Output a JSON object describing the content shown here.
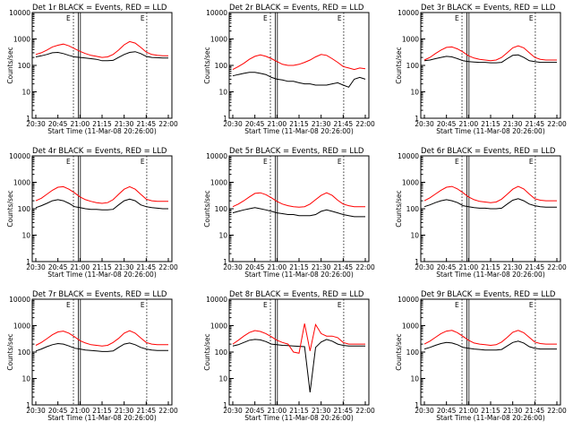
{
  "figure": {
    "xlabel": "Start Time (11-Mar-08 20:26:00)",
    "ylabel": "Counts/sec",
    "x_tick_labels": [
      "20:30",
      "20:45",
      "21:00",
      "21:15",
      "21:30",
      "21:45",
      "22:00"
    ],
    "y_tick_labels": [
      "1",
      "10",
      "100",
      "1000",
      "10000"
    ],
    "marker_label": "E",
    "colors": {
      "events": "#000000",
      "lld": "#ff0000"
    }
  },
  "chart_data": [
    {
      "type": "line",
      "title": "Det 1r BLACK = Events, RED = LLD",
      "scale": "log",
      "ylim": [
        1,
        10000
      ],
      "series": [
        {
          "color": "#000000",
          "values": [
            210,
            230,
            260,
            300,
            310,
            280,
            240,
            210,
            200,
            190,
            180,
            170,
            150,
            150,
            155,
            200,
            260,
            310,
            330,
            280,
            220,
            200,
            195,
            190,
            190
          ]
        },
        {
          "color": "#ff0000",
          "values": [
            260,
            300,
            380,
            500,
            580,
            640,
            550,
            430,
            340,
            280,
            240,
            220,
            200,
            210,
            260,
            380,
            600,
            800,
            700,
            480,
            320,
            260,
            240,
            230,
            230
          ]
        }
      ]
    },
    {
      "type": "line",
      "title": "Det 2r BLACK = Events, RED = LLD",
      "scale": "log",
      "ylim": [
        1,
        10000
      ],
      "series": [
        {
          "color": "#000000",
          "values": [
            40,
            45,
            50,
            55,
            55,
            50,
            45,
            35,
            30,
            28,
            25,
            25,
            22,
            20,
            20,
            18,
            18,
            18,
            20,
            22,
            18,
            15,
            30,
            35,
            30
          ]
        },
        {
          "color": "#ff0000",
          "values": [
            70,
            90,
            120,
            170,
            220,
            250,
            220,
            180,
            140,
            110,
            100,
            100,
            110,
            130,
            160,
            210,
            260,
            240,
            180,
            130,
            90,
            80,
            70,
            80,
            75
          ]
        }
      ]
    },
    {
      "type": "line",
      "title": "Det 3r BLACK = Events, RED = LLD",
      "scale": "log",
      "ylim": [
        1,
        10000
      ],
      "series": [
        {
          "color": "#000000",
          "values": [
            150,
            160,
            180,
            200,
            220,
            210,
            180,
            150,
            140,
            135,
            130,
            130,
            125,
            125,
            130,
            180,
            240,
            250,
            200,
            150,
            140,
            130,
            130,
            130,
            130
          ]
        },
        {
          "color": "#ff0000",
          "values": [
            160,
            200,
            280,
            380,
            480,
            500,
            420,
            320,
            230,
            190,
            170,
            160,
            150,
            160,
            200,
            300,
            460,
            550,
            460,
            300,
            200,
            170,
            160,
            160,
            160
          ]
        }
      ]
    },
    {
      "type": "line",
      "title": "Det 4r BLACK = Events, RED = LLD",
      "scale": "log",
      "ylim": [
        1,
        10000
      ],
      "series": [
        {
          "color": "#000000",
          "values": [
            110,
            130,
            160,
            200,
            220,
            200,
            160,
            120,
            110,
            100,
            95,
            95,
            90,
            90,
            95,
            140,
            200,
            230,
            200,
            140,
            120,
            110,
            105,
            100,
            100
          ]
        },
        {
          "color": "#ff0000",
          "values": [
            200,
            250,
            350,
            500,
            650,
            680,
            550,
            400,
            280,
            220,
            190,
            170,
            160,
            170,
            220,
            350,
            550,
            680,
            550,
            350,
            230,
            200,
            190,
            190,
            190
          ]
        }
      ]
    },
    {
      "type": "line",
      "title": "Det 5r BLACK = Events, RED = LLD",
      "scale": "log",
      "ylim": [
        1,
        10000
      ],
      "series": [
        {
          "color": "#000000",
          "values": [
            70,
            80,
            90,
            100,
            110,
            100,
            90,
            80,
            70,
            65,
            60,
            60,
            55,
            55,
            55,
            60,
            80,
            90,
            80,
            70,
            60,
            55,
            50,
            50,
            50
          ]
        },
        {
          "color": "#ff0000",
          "values": [
            120,
            150,
            200,
            280,
            380,
            400,
            340,
            260,
            190,
            150,
            130,
            120,
            115,
            120,
            150,
            220,
            320,
            400,
            320,
            210,
            150,
            130,
            120,
            120,
            120
          ]
        }
      ]
    },
    {
      "type": "line",
      "title": "Det 6r BLACK = Events, RED = LLD",
      "scale": "log",
      "ylim": [
        1,
        10000
      ],
      "series": [
        {
          "color": "#000000",
          "values": [
            120,
            140,
            170,
            200,
            220,
            200,
            170,
            130,
            120,
            110,
            105,
            105,
            100,
            100,
            105,
            150,
            210,
            240,
            200,
            150,
            130,
            120,
            115,
            115,
            115
          ]
        },
        {
          "color": "#ff0000",
          "values": [
            200,
            260,
            360,
            500,
            650,
            700,
            560,
            400,
            280,
            220,
            190,
            180,
            170,
            180,
            230,
            350,
            550,
            700,
            560,
            360,
            240,
            210,
            200,
            200,
            200
          ]
        }
      ]
    },
    {
      "type": "line",
      "title": "Det 7r BLACK = Events, RED = LLD",
      "scale": "log",
      "ylim": [
        1,
        10000
      ],
      "series": [
        {
          "color": "#000000",
          "values": [
            110,
            130,
            160,
            190,
            210,
            200,
            170,
            140,
            130,
            120,
            115,
            110,
            105,
            105,
            110,
            150,
            200,
            220,
            190,
            150,
            130,
            120,
            115,
            115,
            115
          ]
        },
        {
          "color": "#ff0000",
          "values": [
            180,
            230,
            320,
            450,
            580,
            620,
            520,
            380,
            270,
            220,
            190,
            180,
            170,
            180,
            230,
            330,
            520,
            640,
            520,
            340,
            230,
            200,
            190,
            190,
            190
          ]
        }
      ]
    },
    {
      "type": "line",
      "title": "Det 8r BLACK = Events, RED = LLD",
      "scale": "log",
      "ylim": [
        1,
        10000
      ],
      "series": [
        {
          "color": "#000000",
          "values": [
            170,
            190,
            230,
            280,
            300,
            290,
            250,
            200,
            190,
            180,
            175,
            170,
            165,
            160,
            3,
            150,
            240,
            300,
            260,
            200,
            180,
            170,
            170,
            170,
            170
          ]
        },
        {
          "color": "#ff0000",
          "values": [
            200,
            280,
            400,
            550,
            650,
            600,
            500,
            380,
            280,
            230,
            200,
            100,
            90,
            1200,
            110,
            1100,
            500,
            400,
            400,
            350,
            230,
            200,
            200,
            200,
            200
          ]
        }
      ]
    },
    {
      "type": "line",
      "title": "Det 9r BLACK = Events, RED = LLD",
      "scale": "log",
      "ylim": [
        1,
        10000
      ],
      "series": [
        {
          "color": "#000000",
          "values": [
            130,
            150,
            180,
            210,
            230,
            220,
            190,
            150,
            140,
            130,
            125,
            120,
            120,
            120,
            125,
            170,
            230,
            260,
            220,
            160,
            140,
            130,
            130,
            130,
            130
          ]
        },
        {
          "color": "#ff0000",
          "values": [
            200,
            260,
            360,
            500,
            620,
            660,
            540,
            390,
            280,
            220,
            200,
            190,
            180,
            190,
            240,
            360,
            560,
            660,
            540,
            360,
            240,
            210,
            200,
            200,
            200
          ]
        }
      ]
    }
  ]
}
